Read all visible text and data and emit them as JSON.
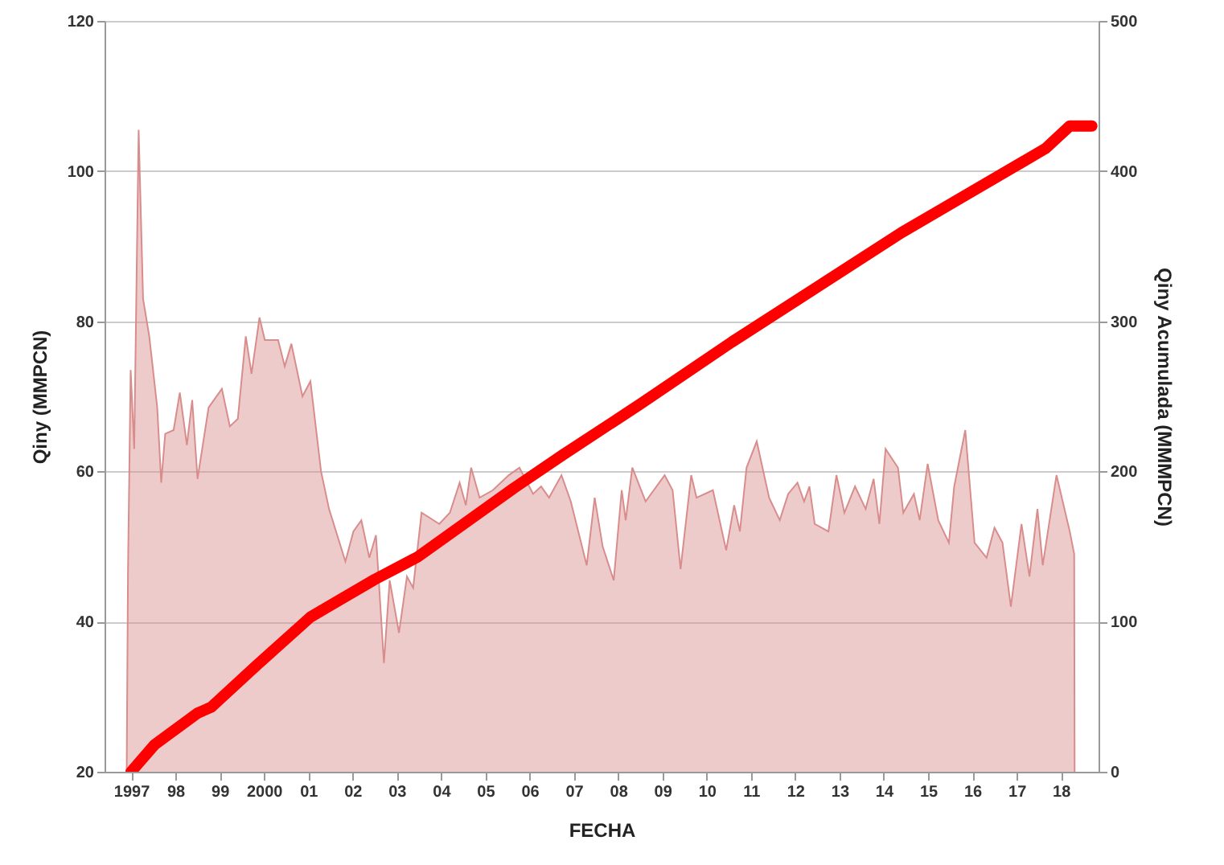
{
  "chart_data": {
    "type": "area",
    "xlabel": "FECHA",
    "ylabel": "Qiny (MMPCN)",
    "y2label": "Qiny Acumulada (MMMPCN)",
    "xlim": [
      1996.4,
      2018.85
    ],
    "ylim": [
      20,
      120
    ],
    "yticks": [
      20,
      40,
      60,
      80,
      100,
      120
    ],
    "y2lim": [
      0,
      500
    ],
    "y2ticks": [
      0,
      100,
      200,
      300,
      400,
      500
    ],
    "xticks": [
      {
        "value": 1997,
        "label": "1997"
      },
      {
        "value": 1998,
        "label": "98"
      },
      {
        "value": 1999,
        "label": "99"
      },
      {
        "value": 2000,
        "label": "2000"
      },
      {
        "value": 2001,
        "label": "01"
      },
      {
        "value": 2002,
        "label": "02"
      },
      {
        "value": 2003,
        "label": "03"
      },
      {
        "value": 2004,
        "label": "04"
      },
      {
        "value": 2005,
        "label": "05"
      },
      {
        "value": 2006,
        "label": "06"
      },
      {
        "value": 2007,
        "label": "07"
      },
      {
        "value": 2008,
        "label": "08"
      },
      {
        "value": 2009,
        "label": "09"
      },
      {
        "value": 2010,
        "label": "10"
      },
      {
        "value": 2011,
        "label": "11"
      },
      {
        "value": 2012,
        "label": "12"
      },
      {
        "value": 2013,
        "label": "13"
      },
      {
        "value": 2014,
        "label": "14"
      },
      {
        "value": 2015,
        "label": "15"
      },
      {
        "value": 2016,
        "label": "16"
      },
      {
        "value": 2017,
        "label": "17"
      },
      {
        "value": 2018,
        "label": "18"
      }
    ],
    "grid": "y",
    "series": [
      {
        "type": "area",
        "color": "#d98c8c",
        "x": [
          1996.9,
          1996.93,
          1996.99,
          1997.07,
          1997.17,
          1997.27,
          1997.41,
          1997.59,
          1997.68,
          1997.77,
          1997.96,
          1998.1,
          1998.26,
          1998.38,
          1998.5,
          1998.75,
          1999.05,
          1999.23,
          1999.41,
          1999.59,
          1999.72,
          1999.9,
          2000.02,
          2000.32,
          2000.47,
          2000.62,
          2000.87,
          2001.05,
          2001.29,
          2001.47,
          2001.84,
          2002.02,
          2002.2,
          2002.38,
          2002.53,
          2002.71,
          2002.84,
          2003.05,
          2003.23,
          2003.37,
          2003.56,
          2003.96,
          2004.2,
          2004.42,
          2004.56,
          2004.68,
          2004.87,
          2005.17,
          2005.53,
          2005.77,
          2006.08,
          2006.26,
          2006.44,
          2006.72,
          2006.93,
          2007.29,
          2007.47,
          2007.65,
          2007.9,
          2008.08,
          2008.17,
          2008.32,
          2008.62,
          2009.05,
          2009.23,
          2009.41,
          2009.65,
          2009.77,
          2010.14,
          2010.44,
          2010.62,
          2010.75,
          2010.9,
          2011.13,
          2011.41,
          2011.65,
          2011.84,
          2012.05,
          2012.2,
          2012.32,
          2012.44,
          2012.75,
          2012.93,
          2013.11,
          2013.35,
          2013.59,
          2013.77,
          2013.9,
          2014.04,
          2014.32,
          2014.44,
          2014.68,
          2014.81,
          2014.99,
          2015.23,
          2015.47,
          2015.59,
          2015.84,
          2016.05,
          2016.32,
          2016.5,
          2016.68,
          2016.87,
          2017.11,
          2017.29,
          2017.47,
          2017.59,
          2017.9,
          2018.2,
          2018.3,
          2018.31
        ],
        "values": [
          20,
          47,
          73.5,
          63,
          105.5,
          83,
          78,
          68.5,
          58.5,
          65,
          65.5,
          70.5,
          63.5,
          69.5,
          59,
          68.5,
          71,
          66,
          67,
          78,
          73,
          80.5,
          77.5,
          77.5,
          74,
          77,
          70,
          72,
          60,
          55,
          48,
          52,
          53.5,
          48.5,
          51.5,
          34.5,
          45.5,
          38.5,
          46,
          44.5,
          54.5,
          53,
          54.5,
          58.5,
          55.5,
          60.5,
          56.5,
          57.5,
          59.5,
          60.5,
          57,
          58,
          56.5,
          59.5,
          56,
          47.5,
          56.5,
          50,
          45.5,
          57.5,
          53.5,
          60.5,
          56,
          59.5,
          57.5,
          47,
          59.5,
          56.5,
          57.5,
          49.5,
          55.5,
          52,
          60.5,
          64,
          56.5,
          53.5,
          57,
          58.5,
          56,
          58,
          53,
          52,
          59.5,
          54.5,
          58,
          55,
          59,
          53,
          63,
          60.5,
          54.5,
          57,
          53.5,
          61,
          53.5,
          50.5,
          58,
          65.5,
          50.5,
          48.5,
          52.5,
          50.5,
          42,
          53,
          46,
          55,
          47.5,
          59.5,
          52,
          49,
          20
        ]
      },
      {
        "type": "line",
        "axis": "y2",
        "color": "#ff0000",
        "x": [
          1997.0,
          1997.53,
          1998.5,
          1998.81,
          1999.84,
          2001.05,
          2002.5,
          2003.47,
          2005.65,
          2006.75,
          2008.56,
          2010.56,
          2014.4,
          2017.65,
          2018.2,
          2018.7
        ],
        "values": [
          0,
          18,
          39,
          43,
          71,
          103,
          128,
          143,
          189,
          211,
          246,
          286,
          359,
          415,
          430,
          430
        ]
      }
    ]
  }
}
